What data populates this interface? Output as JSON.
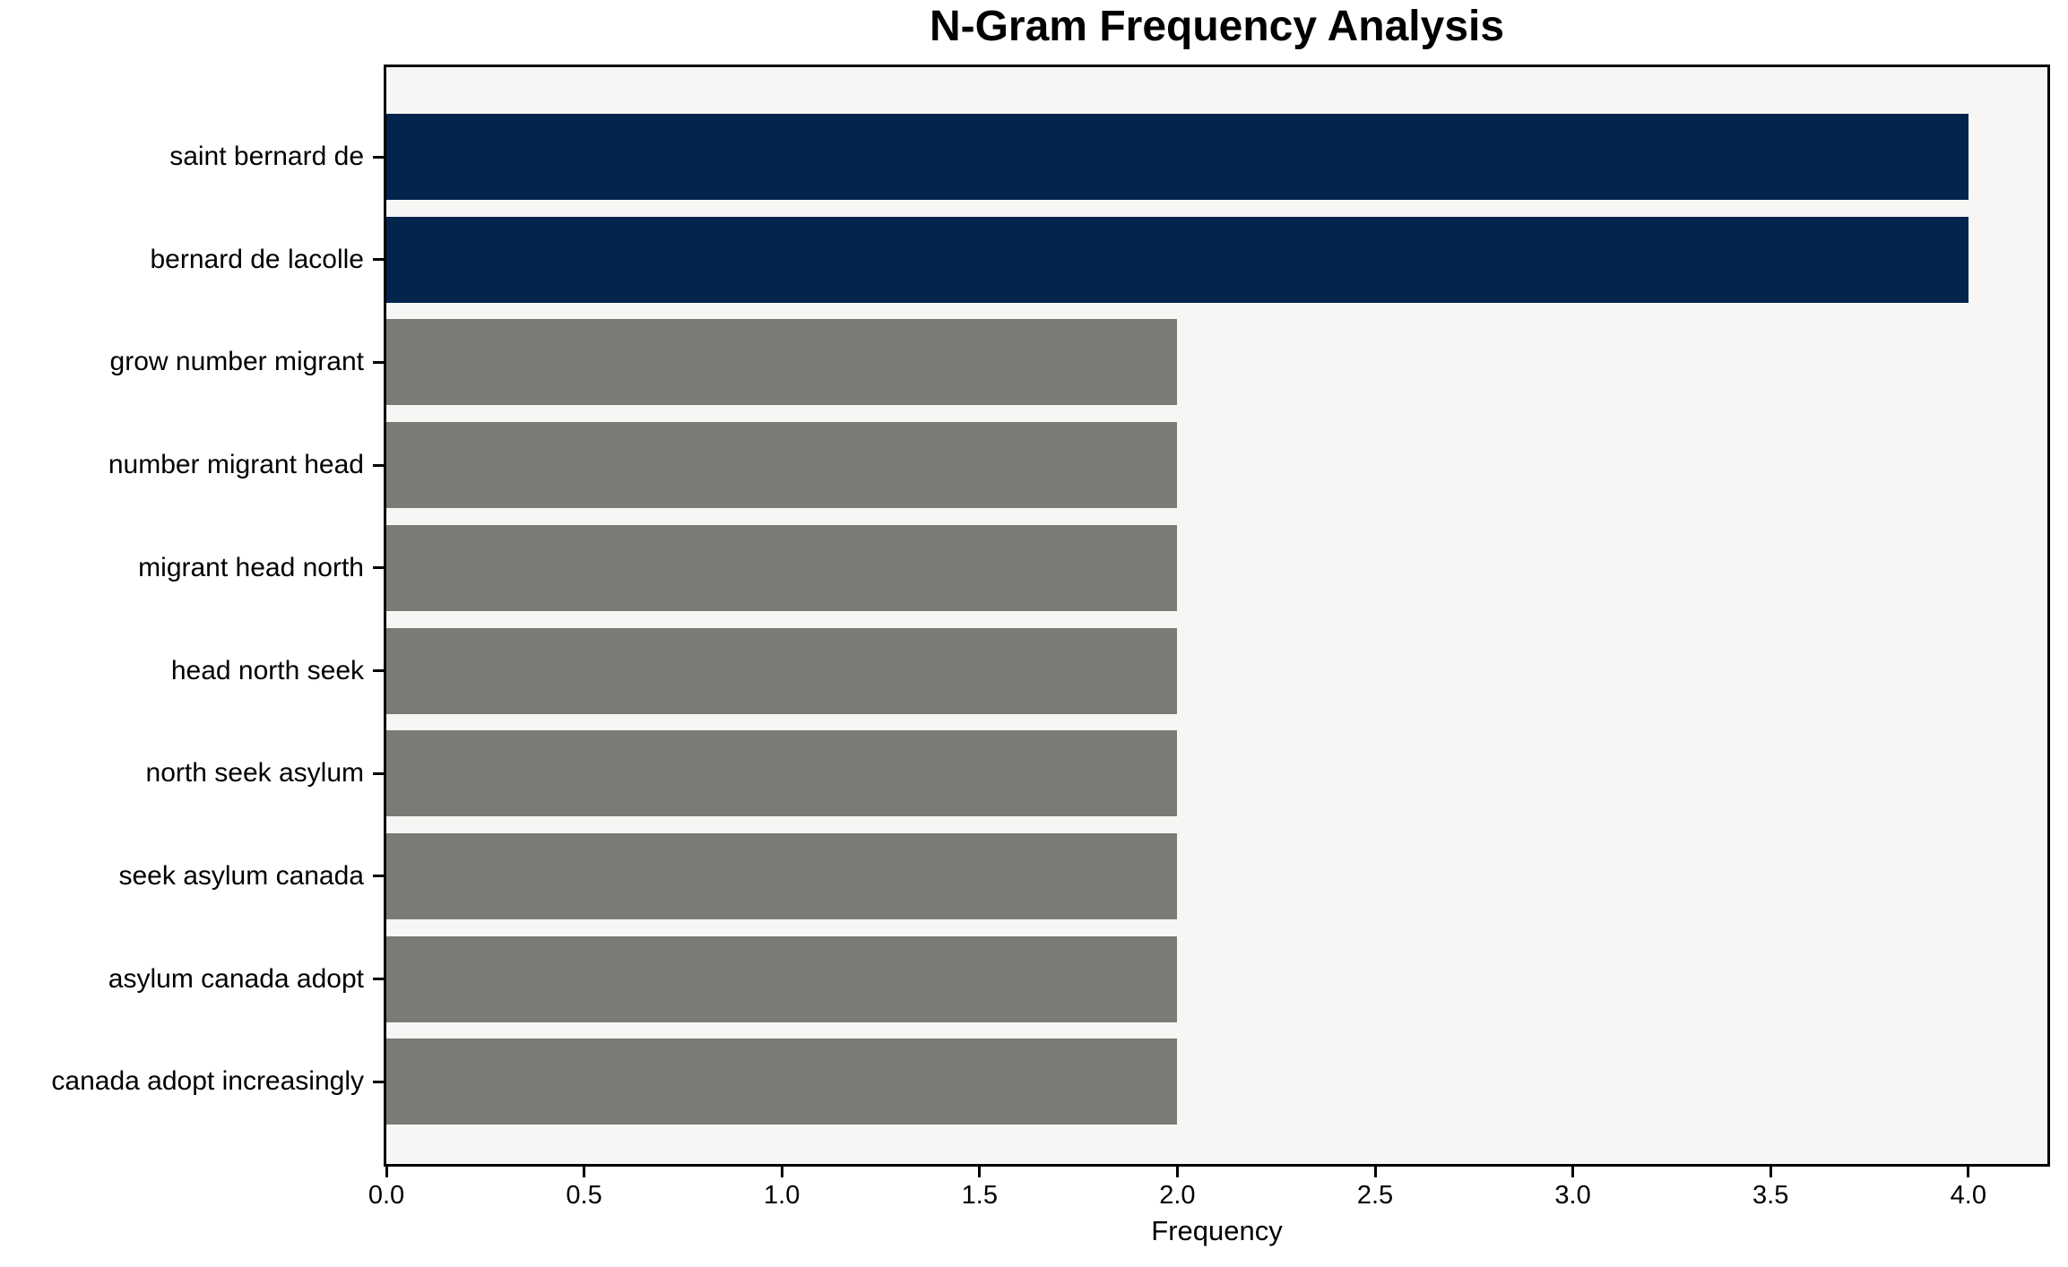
{
  "chart_data": {
    "type": "bar",
    "orientation": "horizontal",
    "title": "N-Gram Frequency Analysis",
    "xlabel": "Frequency",
    "ylabel": "",
    "categories": [
      "saint bernard de",
      "bernard de lacolle",
      "grow number migrant",
      "number migrant head",
      "migrant head north",
      "head north seek",
      "north seek asylum",
      "seek asylum canada",
      "asylum canada adopt",
      "canada adopt increasingly"
    ],
    "values": [
      4,
      4,
      2,
      2,
      2,
      2,
      2,
      2,
      2,
      2
    ],
    "bar_colors": [
      "#02244d",
      "#02244d",
      "#7b7a77",
      "#7b7a77",
      "#7b7a77",
      "#7b7a77",
      "#7b7a77",
      "#7b7a77",
      "#7b7a77",
      "#7b7a77"
    ],
    "x_ticks": [
      "0.0",
      "0.5",
      "1.0",
      "1.5",
      "2.0",
      "2.5",
      "3.0",
      "3.5",
      "4.0"
    ],
    "x_tick_values": [
      0,
      0.5,
      1,
      1.5,
      2,
      2.5,
      3,
      3.5,
      4
    ],
    "xlim": [
      0,
      4.2
    ],
    "grid": false,
    "legend": "none",
    "colors": {
      "highlight_bar": "#02244d",
      "default_bar": "#7b7a77",
      "plot_background": "#f7f6f4",
      "figure_background": "#ffffff",
      "spine": "#000000",
      "text": "#000000"
    }
  }
}
